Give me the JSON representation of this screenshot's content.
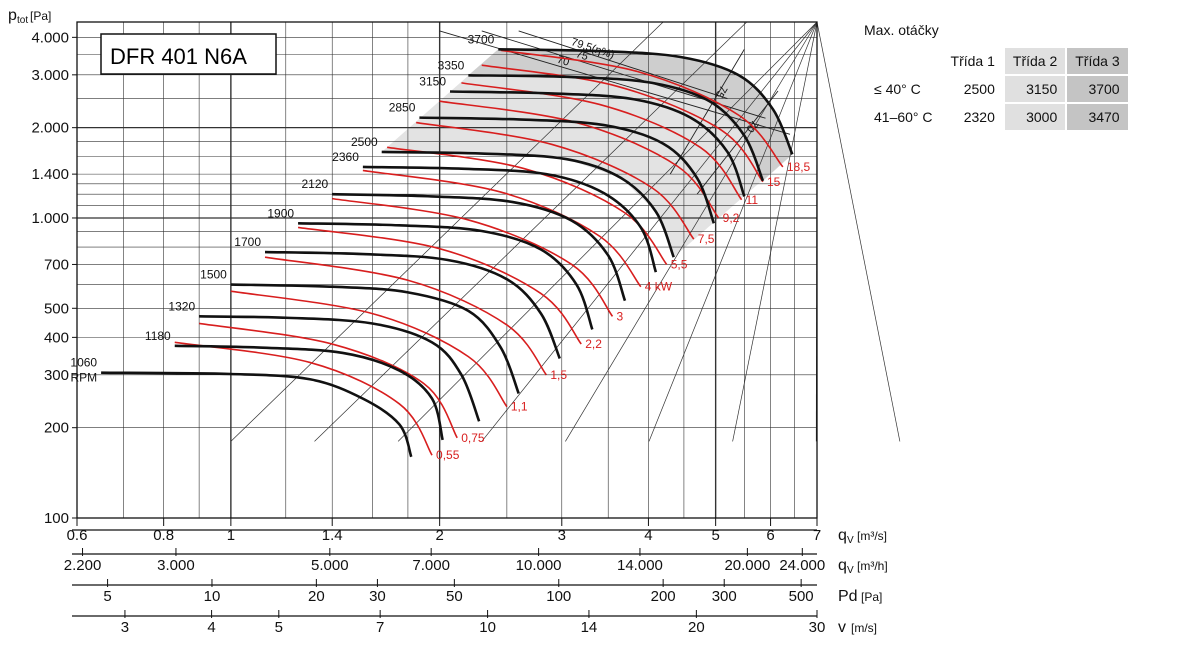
{
  "chart_data": {
    "type": "line",
    "title": "DFR 401 N6A",
    "ylabel": "p",
    "ylabel_sub": "tot",
    "ylabel_unit": "[Pa]",
    "y_scale": "log",
    "ylim": [
      100,
      4500
    ],
    "y_ticks": [
      {
        "value": 100,
        "label": "100"
      },
      {
        "value": 200,
        "label": "200"
      },
      {
        "value": 300,
        "label": "300"
      },
      {
        "value": 400,
        "label": "400"
      },
      {
        "value": 500,
        "label": "500"
      },
      {
        "value": 700,
        "label": "700"
      },
      {
        "value": 1000,
        "label": "1.000"
      },
      {
        "value": 1400,
        "label": "1.400"
      },
      {
        "value": 2000,
        "label": "2.000"
      },
      {
        "value": 3000,
        "label": "3.000"
      },
      {
        "value": 4000,
        "label": "4.000"
      }
    ],
    "x_scale": "log",
    "xlim": [
      0.6,
      7
    ],
    "x_axes": [
      {
        "unit": "m3/s",
        "label": "q",
        "sub": "V",
        "unit_text": "[m³/s]",
        "ticks": [
          {
            "value": 0.6,
            "label": "0.6"
          },
          {
            "value": 0.8,
            "label": "0.8"
          },
          {
            "value": 1,
            "label": "1"
          },
          {
            "value": 1.4,
            "label": "1.4"
          },
          {
            "value": 2,
            "label": "2"
          },
          {
            "value": 3,
            "label": "3"
          },
          {
            "value": 4,
            "label": "4"
          },
          {
            "value": 5,
            "label": "5"
          },
          {
            "value": 6,
            "label": "6"
          },
          {
            "value": 7,
            "label": "7"
          }
        ]
      },
      {
        "unit": "m3/h",
        "label": "q",
        "sub": "V",
        "unit_text": "[m³/h]",
        "ticks": [
          {
            "value": 2200,
            "label": "2.200"
          },
          {
            "value": 3000,
            "label": "3.000"
          },
          {
            "value": 5000,
            "label": "5.000"
          },
          {
            "value": 7000,
            "label": "7.000"
          },
          {
            "value": 10000,
            "label": "10.000"
          },
          {
            "value": 14000,
            "label": "14.000"
          },
          {
            "value": 20000,
            "label": "20.000"
          },
          {
            "value": 24000,
            "label": "24.000"
          }
        ]
      },
      {
        "unit": "Pa",
        "label": "Pd",
        "sub": "",
        "unit_text": "[Pa]",
        "ticks": [
          {
            "value": 5,
            "label": "5"
          },
          {
            "value": 10,
            "label": "10"
          },
          {
            "value": 20,
            "label": "20"
          },
          {
            "value": 30,
            "label": "30"
          },
          {
            "value": 50,
            "label": "50"
          },
          {
            "value": 100,
            "label": "100"
          },
          {
            "value": 200,
            "label": "200"
          },
          {
            "value": 300,
            "label": "300"
          },
          {
            "value": 500,
            "label": "500"
          }
        ]
      },
      {
        "unit": "m/s",
        "label": "v",
        "sub": "",
        "unit_text": "[m/s]",
        "ticks": [
          {
            "value": 3,
            "label": "3"
          },
          {
            "value": 4,
            "label": "4"
          },
          {
            "value": 5,
            "label": "5"
          },
          {
            "value": 7,
            "label": "7"
          },
          {
            "value": 10,
            "label": "10"
          },
          {
            "value": 14,
            "label": "14"
          },
          {
            "value": 20,
            "label": "20"
          },
          {
            "value": 30,
            "label": "30"
          }
        ]
      }
    ],
    "speed_curves": [
      {
        "rpm": 1060,
        "label": "1060",
        "sublabel": "RPM",
        "points": [
          [
            0.65,
            305
          ],
          [
            1.0,
            302
          ],
          [
            1.3,
            290
          ],
          [
            1.55,
            250
          ],
          [
            1.75,
            205
          ],
          [
            1.82,
            160
          ]
        ]
      },
      {
        "rpm": 1180,
        "label": "1180",
        "points": [
          [
            0.83,
            375
          ],
          [
            1.1,
            370
          ],
          [
            1.45,
            355
          ],
          [
            1.75,
            310
          ],
          [
            1.95,
            250
          ],
          [
            2.02,
            182
          ]
        ]
      },
      {
        "rpm": 1320,
        "label": "1320",
        "points": [
          [
            0.9,
            470
          ],
          [
            1.2,
            465
          ],
          [
            1.6,
            445
          ],
          [
            1.95,
            385
          ],
          [
            2.15,
            300
          ],
          [
            2.28,
            210
          ]
        ]
      },
      {
        "rpm": 1500,
        "label": "1500",
        "points": [
          [
            1.0,
            600
          ],
          [
            1.4,
            590
          ],
          [
            1.8,
            565
          ],
          [
            2.2,
            490
          ],
          [
            2.45,
            370
          ],
          [
            2.6,
            260
          ]
        ]
      },
      {
        "rpm": 1700,
        "label": "1700",
        "points": [
          [
            1.12,
            770
          ],
          [
            1.55,
            758
          ],
          [
            2.05,
            725
          ],
          [
            2.5,
            625
          ],
          [
            2.8,
            480
          ],
          [
            2.98,
            340
          ]
        ]
      },
      {
        "rpm": 1900,
        "label": "1900",
        "points": [
          [
            1.25,
            960
          ],
          [
            1.75,
            945
          ],
          [
            2.3,
            905
          ],
          [
            2.8,
            785
          ],
          [
            3.15,
            600
          ],
          [
            3.32,
            425
          ]
        ]
      },
      {
        "rpm": 2120,
        "label": "2120",
        "points": [
          [
            1.4,
            1200
          ],
          [
            1.95,
            1180
          ],
          [
            2.55,
            1130
          ],
          [
            3.1,
            980
          ],
          [
            3.5,
            750
          ],
          [
            3.7,
            530
          ]
        ]
      },
      {
        "rpm": 2360,
        "label": "2360",
        "points": [
          [
            1.55,
            1480
          ],
          [
            2.15,
            1460
          ],
          [
            2.85,
            1400
          ],
          [
            3.45,
            1210
          ],
          [
            3.9,
            930
          ],
          [
            4.1,
            660
          ]
        ]
      },
      {
        "rpm": 2500,
        "label": "2500",
        "points": [
          [
            1.65,
            1660
          ],
          [
            2.3,
            1640
          ],
          [
            3.05,
            1570
          ],
          [
            3.65,
            1360
          ],
          [
            4.1,
            1050
          ],
          [
            4.35,
            740
          ]
        ]
      },
      {
        "rpm": 2850,
        "label": "2850",
        "points": [
          [
            1.87,
            2160
          ],
          [
            2.6,
            2130
          ],
          [
            3.45,
            2040
          ],
          [
            4.2,
            1770
          ],
          [
            4.7,
            1360
          ],
          [
            4.97,
            960
          ]
        ]
      },
      {
        "rpm": 3150,
        "label": "3150",
        "points": [
          [
            2.07,
            2640
          ],
          [
            2.9,
            2600
          ],
          [
            3.8,
            2490
          ],
          [
            4.6,
            2160
          ],
          [
            5.2,
            1660
          ],
          [
            5.5,
            1180
          ]
        ]
      },
      {
        "rpm": 3350,
        "label": "3350",
        "points": [
          [
            2.2,
            2990
          ],
          [
            3.1,
            2950
          ],
          [
            4.05,
            2820
          ],
          [
            4.9,
            2450
          ],
          [
            5.5,
            1880
          ],
          [
            5.85,
            1330
          ]
        ]
      },
      {
        "rpm": 3700,
        "label": "3700",
        "points": [
          [
            2.43,
            3650
          ],
          [
            3.4,
            3600
          ],
          [
            4.45,
            3440
          ],
          [
            5.4,
            2990
          ],
          [
            6.05,
            2300
          ],
          [
            6.45,
            1630
          ]
        ]
      }
    ],
    "power_curves": [
      {
        "label": "0,55",
        "points": [
          [
            0.83,
            385
          ],
          [
            1.3,
            330
          ],
          [
            1.75,
            240
          ],
          [
            1.95,
            162
          ]
        ]
      },
      {
        "label": "0,75",
        "points": [
          [
            0.9,
            445
          ],
          [
            1.4,
            380
          ],
          [
            1.9,
            280
          ],
          [
            2.12,
            185
          ]
        ]
      },
      {
        "label": "1,1",
        "points": [
          [
            1.0,
            570
          ],
          [
            1.6,
            480
          ],
          [
            2.2,
            345
          ],
          [
            2.5,
            235
          ]
        ]
      },
      {
        "label": "1,5",
        "points": [
          [
            1.12,
            740
          ],
          [
            1.8,
            620
          ],
          [
            2.5,
            440
          ],
          [
            2.85,
            300
          ]
        ]
      },
      {
        "label": "2,2",
        "points": [
          [
            1.25,
            930
          ],
          [
            2.0,
            790
          ],
          [
            2.8,
            560
          ],
          [
            3.2,
            380
          ]
        ]
      },
      {
        "label": "3",
        "points": [
          [
            1.4,
            1160
          ],
          [
            2.2,
            985
          ],
          [
            3.1,
            700
          ],
          [
            3.55,
            470
          ]
        ]
      },
      {
        "label": "4 kW",
        "points": [
          [
            1.55,
            1440
          ],
          [
            2.45,
            1220
          ],
          [
            3.4,
            870
          ],
          [
            3.9,
            590
          ]
        ]
      },
      {
        "label": "5,5",
        "points": [
          [
            1.68,
            1720
          ],
          [
            2.65,
            1460
          ],
          [
            3.7,
            1040
          ],
          [
            4.25,
            700
          ]
        ]
      },
      {
        "label": "7,5",
        "points": [
          [
            1.85,
            2080
          ],
          [
            2.9,
            1760
          ],
          [
            4.05,
            1260
          ],
          [
            4.65,
            850
          ]
        ]
      },
      {
        "label": "9,2",
        "points": [
          [
            2.0,
            2450
          ],
          [
            3.15,
            2080
          ],
          [
            4.4,
            1490
          ],
          [
            5.05,
            1000
          ]
        ]
      },
      {
        "label": "11",
        "points": [
          [
            2.15,
            2820
          ],
          [
            3.4,
            2390
          ],
          [
            4.75,
            1720
          ],
          [
            5.45,
            1150
          ]
        ]
      },
      {
        "label": "15",
        "points": [
          [
            2.3,
            3230
          ],
          [
            3.6,
            2750
          ],
          [
            5.1,
            1960
          ],
          [
            5.85,
            1320
          ]
        ]
      },
      {
        "label": "18,5",
        "points": [
          [
            2.45,
            3620
          ],
          [
            3.85,
            3080
          ],
          [
            5.4,
            2200
          ],
          [
            6.25,
            1480
          ]
        ]
      }
    ],
    "efficiency_lines": [
      {
        "label": "70",
        "points": [
          [
            2.0,
            4200
          ],
          [
            6.4,
            1900
          ]
        ]
      },
      {
        "label": "75",
        "points": [
          [
            2.3,
            4200
          ],
          [
            5.9,
            2150
          ]
        ]
      },
      {
        "label": "79,5(η%)",
        "points": [
          [
            2.6,
            4200
          ],
          [
            5.2,
            2500
          ]
        ]
      },
      {
        "label": "75",
        "points": [
          [
            5.5,
            3650
          ],
          [
            4.3,
            1400
          ]
        ]
      },
      {
        "label": "70",
        "points": [
          [
            6.15,
            2650
          ],
          [
            4.7,
            1200
          ]
        ]
      }
    ],
    "shaded_region": {
      "description": "operating envelope",
      "colors": [
        "#e0e0e0",
        "#c4c4c4"
      ]
    }
  },
  "rpm_table": {
    "title": "Max. otáčky",
    "headers": [
      "Třída 1",
      "Třída 2",
      "Třída 3"
    ],
    "rows": [
      {
        "label": "≤ 40° C",
        "values": [
          "2500",
          "3150",
          "3700"
        ]
      },
      {
        "label": "41–60° C",
        "values": [
          "2320",
          "3000",
          "3470"
        ]
      }
    ]
  },
  "colors": {
    "speed_curve": "#111111",
    "power_curve": "#d81e1e",
    "grid": "#333333",
    "shade_light": "#e3e3e3",
    "shade_dark": "#c8c8c8"
  }
}
